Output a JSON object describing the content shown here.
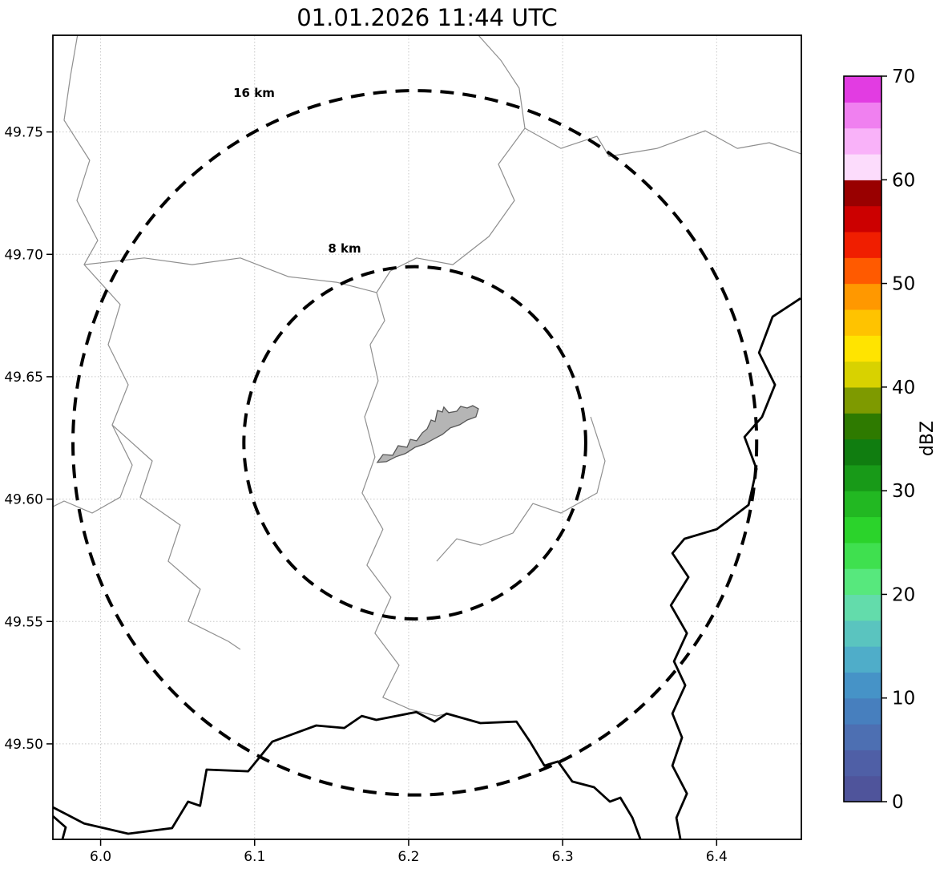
{
  "title": "01.01.2026 11:44 UTC",
  "map": {
    "xlim": [
      5.969,
      6.455
    ],
    "ylim": [
      49.461,
      49.7895
    ],
    "xticks": [
      6.0,
      6.1,
      6.2,
      6.3,
      6.4
    ],
    "xtick_labels": [
      "6.0",
      "6.1",
      "6.2",
      "6.3",
      "6.4"
    ],
    "yticks": [
      49.5,
      49.55,
      49.6,
      49.65,
      49.7,
      49.75
    ],
    "ytick_labels": [
      "49.50",
      "49.55",
      "49.60",
      "49.65",
      "49.70",
      "49.75"
    ],
    "ring_center": [
      6.204,
      49.623
    ],
    "deg_per_km_lon": 0.013875,
    "deg_per_km_lat": 0.0089925,
    "rings": [
      {
        "label": "16 km",
        "radius_km": 16,
        "label_lon": 6.0996,
        "label_lat": 49.7656
      },
      {
        "label": "8 km",
        "radius_km": 8,
        "label_lon": 6.1584,
        "label_lat": 49.702
      }
    ],
    "colors": {
      "grid": "#c8c8c8",
      "thin": "#8f8f8f",
      "thick": "#000000",
      "ring": "#000000",
      "airport_fill": "#b5b5b5",
      "airport_edge": "#565656",
      "frame": "#000000"
    },
    "airport_polygon": [
      [
        6.1797,
        49.615
      ],
      [
        6.1834,
        49.6182
      ],
      [
        6.1896,
        49.6179
      ],
      [
        6.1932,
        49.6218
      ],
      [
        6.199,
        49.6212
      ],
      [
        6.2011,
        49.6244
      ],
      [
        6.2052,
        49.6238
      ],
      [
        6.2089,
        49.6271
      ],
      [
        6.212,
        49.6287
      ],
      [
        6.2146,
        49.6323
      ],
      [
        6.2172,
        49.6317
      ],
      [
        6.2187,
        49.6362
      ],
      [
        6.2219,
        49.6356
      ],
      [
        6.2229,
        49.6376
      ],
      [
        6.226,
        49.6353
      ],
      [
        6.2312,
        49.6359
      ],
      [
        6.2338,
        49.6379
      ],
      [
        6.238,
        49.6372
      ],
      [
        6.2416,
        49.6382
      ],
      [
        6.2453,
        49.6369
      ],
      [
        6.2437,
        49.6336
      ],
      [
        6.238,
        49.6323
      ],
      [
        6.2333,
        49.6304
      ],
      [
        6.2271,
        49.6291
      ],
      [
        6.2219,
        49.6264
      ],
      [
        6.2161,
        49.6245
      ],
      [
        6.2104,
        49.6225
      ],
      [
        6.2042,
        49.6212
      ],
      [
        6.1979,
        49.6186
      ],
      [
        6.1917,
        49.6173
      ],
      [
        6.1855,
        49.6153
      ]
    ],
    "thin_lines": [
      [
        [
          5.985,
          49.7895
        ],
        [
          5.9804,
          49.7728
        ],
        [
          5.9763,
          49.7548
        ],
        [
          5.9929,
          49.7384
        ],
        [
          5.9846,
          49.722
        ],
        [
          5.9981,
          49.7057
        ],
        [
          5.9893,
          49.6958
        ],
        [
          6.0127,
          49.6795
        ],
        [
          6.0049,
          49.6631
        ],
        [
          6.0179,
          49.6467
        ],
        [
          6.0075,
          49.6303
        ],
        [
          6.0205,
          49.6139
        ],
        [
          6.0127,
          49.6008
        ],
        [
          5.9945,
          49.5943
        ],
        [
          5.9763,
          49.5992
        ],
        [
          5.969,
          49.5969
        ]
      ],
      [
        [
          5.9893,
          49.6958
        ],
        [
          6.0283,
          49.6985
        ],
        [
          6.0595,
          49.6958
        ],
        [
          6.0907,
          49.6985
        ],
        [
          6.1219,
          49.6909
        ],
        [
          6.1532,
          49.6886
        ],
        [
          6.1792,
          49.6844
        ]
      ],
      [
        [
          6.2453,
          49.7895
        ],
        [
          6.2598,
          49.7793
        ],
        [
          6.2718,
          49.7679
        ],
        [
          6.2755,
          49.7515
        ],
        [
          6.2583,
          49.7368
        ],
        [
          6.2687,
          49.722
        ],
        [
          6.2521,
          49.7073
        ],
        [
          6.2287,
          49.6958
        ],
        [
          6.2052,
          49.6985
        ],
        [
          6.1881,
          49.6932
        ],
        [
          6.1792,
          49.6844
        ],
        [
          6.1844,
          49.6729
        ],
        [
          6.175,
          49.6631
        ]
      ],
      [
        [
          6.2755,
          49.7515
        ],
        [
          6.2989,
          49.7433
        ],
        [
          6.3223,
          49.7482
        ],
        [
          6.3301,
          49.74
        ],
        [
          6.3614,
          49.7433
        ],
        [
          6.3926,
          49.7505
        ],
        [
          6.4134,
          49.7433
        ],
        [
          6.4342,
          49.7456
        ],
        [
          6.455,
          49.741
        ]
      ],
      [
        [
          6.175,
          49.6631
        ],
        [
          6.1802,
          49.6483
        ],
        [
          6.1714,
          49.6336
        ],
        [
          6.1781,
          49.6172
        ],
        [
          6.1698,
          49.6025
        ],
        [
          6.1833,
          49.5877
        ],
        [
          6.1729,
          49.573
        ],
        [
          6.1885,
          49.5599
        ],
        [
          6.1781,
          49.5452
        ],
        [
          6.1938,
          49.5321
        ],
        [
          6.1833,
          49.519
        ],
        [
          6.201,
          49.5141
        ],
        [
          6.2182,
          49.5114
        ],
        [
          6.225,
          49.5124
        ]
      ],
      [
        [
          6.0075,
          49.6303
        ],
        [
          6.0335,
          49.6156
        ],
        [
          6.0257,
          49.6008
        ],
        [
          6.0517,
          49.5894
        ],
        [
          6.0439,
          49.5746
        ],
        [
          6.0647,
          49.5632
        ],
        [
          6.0569,
          49.5501
        ],
        [
          6.0829,
          49.5419
        ],
        [
          6.0907,
          49.5386
        ]
      ],
      [
        [
          6.3182,
          49.6336
        ],
        [
          6.3275,
          49.6156
        ],
        [
          6.3223,
          49.6025
        ],
        [
          6.2989,
          49.5943
        ],
        [
          6.2807,
          49.5982
        ],
        [
          6.2677,
          49.5861
        ],
        [
          6.2468,
          49.5812
        ],
        [
          6.2312,
          49.5838
        ],
        [
          6.2182,
          49.5746
        ]
      ]
    ],
    "thick_lines": [
      [
        [
          6.4545,
          49.682
        ],
        [
          6.4363,
          49.6745
        ],
        [
          6.4275,
          49.6598
        ],
        [
          6.4379,
          49.6467
        ],
        [
          6.4295,
          49.6336
        ],
        [
          6.4181,
          49.6254
        ],
        [
          6.4259,
          49.6123
        ],
        [
          6.4207,
          49.5976
        ],
        [
          6.4,
          49.5877
        ],
        [
          6.3791,
          49.5838
        ],
        [
          6.3713,
          49.5779
        ],
        [
          6.3817,
          49.5681
        ],
        [
          6.3703,
          49.5566
        ],
        [
          6.3807,
          49.5452
        ],
        [
          6.3723,
          49.5337
        ],
        [
          6.3796,
          49.5239
        ],
        [
          6.3713,
          49.5124
        ],
        [
          6.3775,
          49.5026
        ],
        [
          6.3713,
          49.4911
        ],
        [
          6.3807,
          49.4797
        ],
        [
          6.3739,
          49.4698
        ],
        [
          6.3765,
          49.461
        ]
      ],
      [
        [
          5.969,
          49.4741
        ],
        [
          5.9893,
          49.4675
        ],
        [
          6.0179,
          49.4633
        ],
        [
          6.0464,
          49.4656
        ],
        [
          6.0568,
          49.4764
        ],
        [
          6.0646,
          49.4747
        ],
        [
          6.0688,
          49.4895
        ],
        [
          6.0958,
          49.4888
        ],
        [
          6.1114,
          49.5009
        ],
        [
          6.14,
          49.5075
        ],
        [
          6.1582,
          49.5065
        ],
        [
          6.1696,
          49.5114
        ],
        [
          6.179,
          49.5098
        ],
        [
          6.205,
          49.513
        ],
        [
          6.2169,
          49.5091
        ],
        [
          6.2247,
          49.5124
        ],
        [
          6.2466,
          49.5085
        ],
        [
          6.27,
          49.5091
        ],
        [
          6.2788,
          49.5009
        ],
        [
          6.2882,
          49.4911
        ],
        [
          6.297,
          49.4928
        ],
        [
          6.3063,
          49.4846
        ],
        [
          6.3204,
          49.4823
        ],
        [
          6.3307,
          49.4764
        ],
        [
          6.3375,
          49.478
        ],
        [
          6.3453,
          49.4698
        ],
        [
          6.3505,
          49.461
        ]
      ],
      [
        [
          5.969,
          49.4705
        ],
        [
          5.9773,
          49.4659
        ],
        [
          5.9752,
          49.461
        ]
      ]
    ]
  },
  "colorbar": {
    "label": "dBZ",
    "vmin": 0,
    "vmax": 70,
    "step": 2.5,
    "ticks": [
      0,
      10,
      20,
      30,
      40,
      50,
      60,
      70
    ],
    "tick_labels": [
      "0",
      "10",
      "20",
      "30",
      "40",
      "50",
      "60",
      "70"
    ],
    "colors": [
      "#4f549b",
      "#4f5fa6",
      "#4d6fb2",
      "#477fbe",
      "#4693c7",
      "#4fadc9",
      "#5ac4bf",
      "#63dcab",
      "#57e87d",
      "#3fe04f",
      "#2bd32b",
      "#22b822",
      "#189a18",
      "#107d10",
      "#2e7a00",
      "#7e9a00",
      "#d8d200",
      "#ffe400",
      "#ffc300",
      "#ff9800",
      "#ff5a00",
      "#f01e00",
      "#cc0000",
      "#990000",
      "#fcdcfc",
      "#f9b2f9",
      "#f080f0",
      "#e23ce2"
    ]
  }
}
